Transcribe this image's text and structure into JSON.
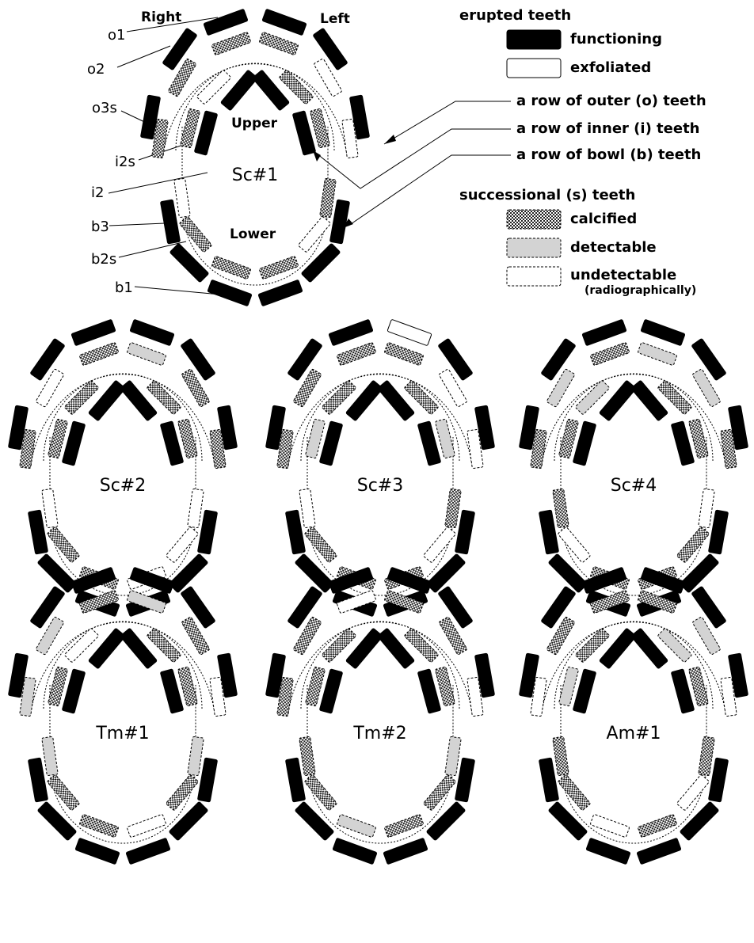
{
  "orientation": {
    "right": "Right",
    "left": "Left",
    "upper": "Upper",
    "lower": "Lower"
  },
  "tooth_labels": [
    "o1",
    "o2",
    "o3s",
    "i2s",
    "i2",
    "b3",
    "b2s",
    "b1"
  ],
  "legend": {
    "erupted_title": "erupted teeth",
    "functioning": "functioning",
    "exfoliated": "exfoliated",
    "rows": [
      "a row of outer (o) teeth",
      "a row of inner (i) teeth",
      "a row of bowl (b) teeth"
    ],
    "successional_title": "successional (s) teeth",
    "calcified": "calcified",
    "detectable": "detectable",
    "undetectable": "undetectable",
    "undetectable_note": "(radiographically)"
  },
  "panels": [
    "Sc#1",
    "Sc#2",
    "Sc#3",
    "Sc#4",
    "Tm#1",
    "Tm#2",
    "Am#1"
  ]
}
